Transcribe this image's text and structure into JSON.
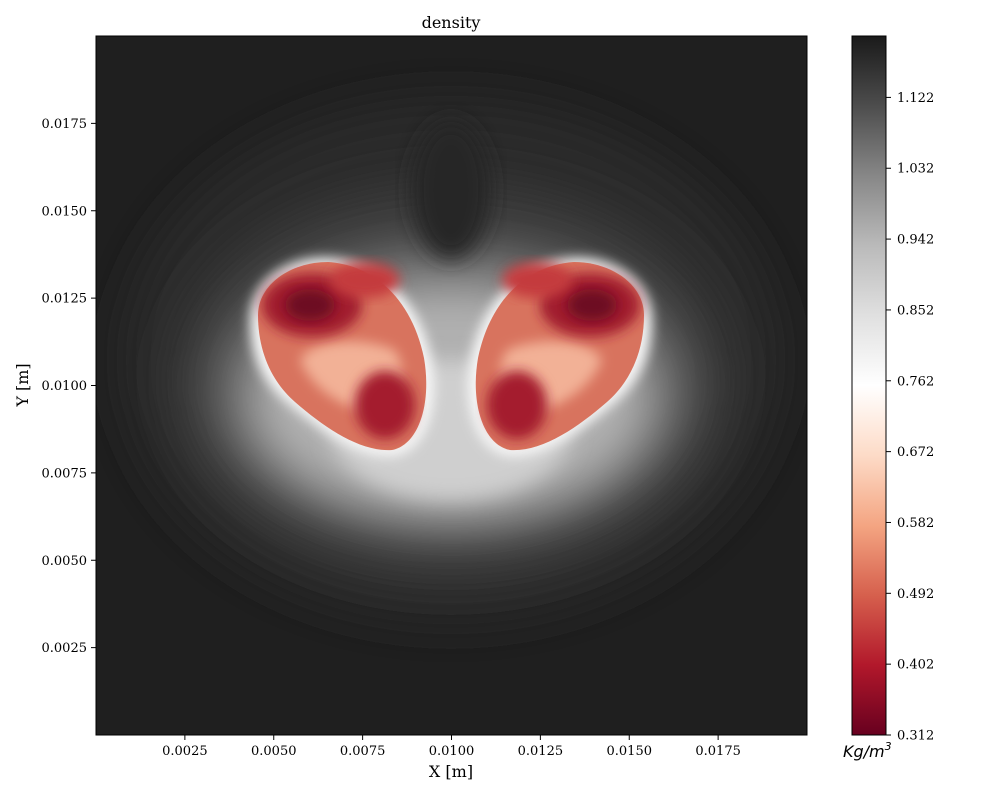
{
  "chart_data": {
    "type": "heatmap",
    "title": "density",
    "xlabel": "X [m]",
    "ylabel": "Y [m]",
    "xlim": [
      0.0,
      0.02
    ],
    "ylim": [
      0.0,
      0.02
    ],
    "x_ticks": [
      "0.0025",
      "0.0050",
      "0.0075",
      "0.0100",
      "0.0125",
      "0.0150",
      "0.0175"
    ],
    "y_ticks": [
      "0.0025",
      "0.0050",
      "0.0075",
      "0.0100",
      "0.0125",
      "0.0150",
      "0.0175"
    ],
    "colorbar": {
      "label": "Kg/m",
      "label_superscript": "3",
      "range": [
        0.312,
        1.2
      ],
      "ticks": [
        "0.312",
        "0.402",
        "0.492",
        "0.582",
        "0.672",
        "0.762",
        "0.852",
        "0.942",
        "1.032",
        "1.122"
      ],
      "colormap": "RdGy"
    },
    "features": [
      {
        "name": "left-lobe",
        "center": [
          0.0069,
          0.0108
        ],
        "min_density": 0.33
      },
      {
        "name": "right-lobe",
        "center": [
          0.0131,
          0.0108
        ],
        "min_density": 0.33
      }
    ],
    "ambient_density": 1.2
  }
}
